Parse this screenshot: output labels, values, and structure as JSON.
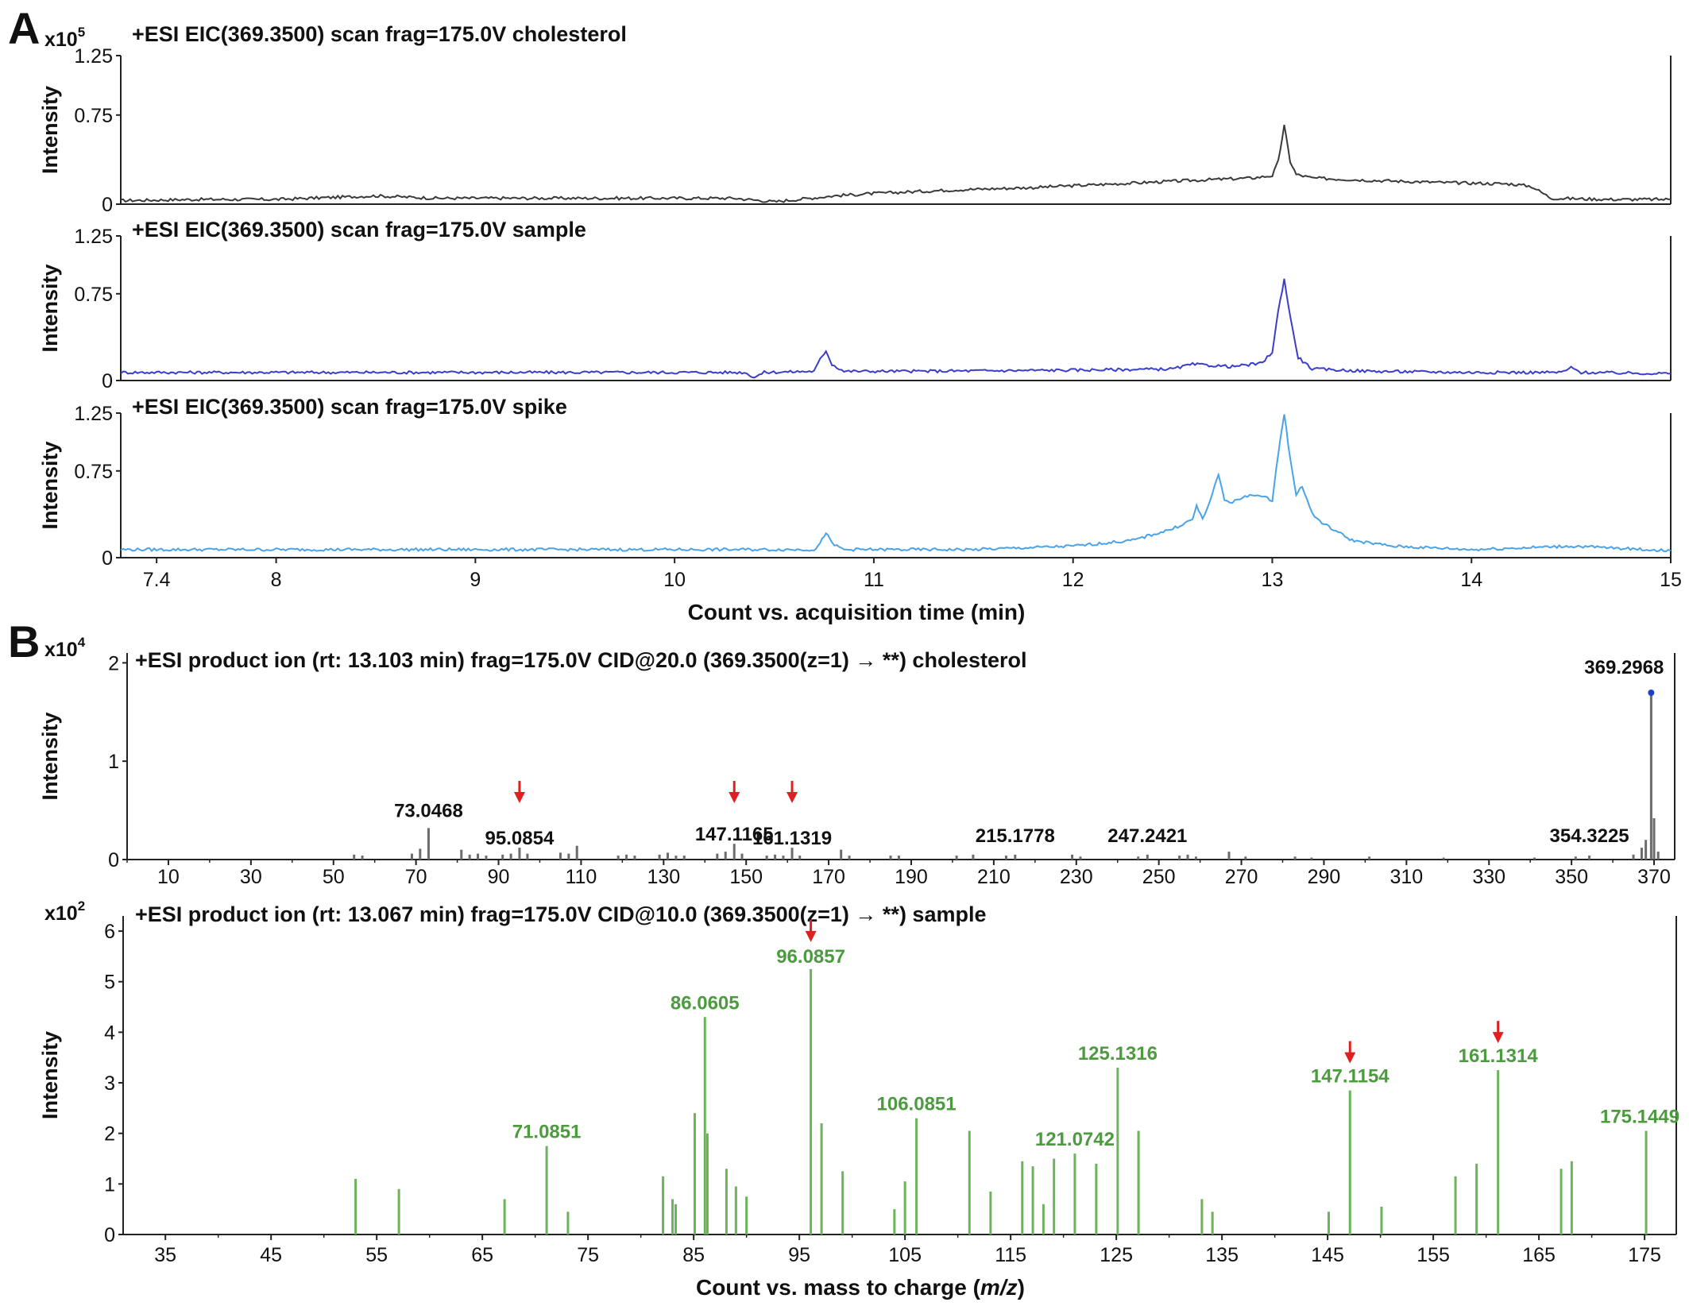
{
  "panel_labels": [
    "A",
    "B"
  ],
  "colors": {
    "cholesterol": "#3a3a3a",
    "sample_eic": "#3b3ec8",
    "spike_eic": "#4aa3e8",
    "ms_chol": "#6b6b6b",
    "ms_sample": "#6cb35c",
    "arrow": "#e02020",
    "marker": "#1f3fd0"
  },
  "chart_data": [
    {
      "type": "line",
      "title": "+ESI EIC(369.3500) scan frag=175.0V cholesterol",
      "multiplier": "x10",
      "multiplier_exp": "5",
      "ylabel": "Intensity",
      "xlabel": "",
      "xlim": [
        7.22,
        15.0
      ],
      "ylim": [
        0,
        1.25
      ],
      "yticks": [
        "0",
        "0.75",
        "1.25"
      ],
      "ytick_values": [
        0,
        0.75,
        1.25
      ],
      "xticks": [],
      "series": [
        {
          "x": [
            7.22,
            7.6,
            8.0,
            8.5,
            8.8,
            9.2,
            9.6,
            10.0,
            10.3,
            10.5,
            10.8,
            11.0,
            11.4,
            11.8,
            12.2,
            12.6,
            12.9,
            13.0,
            13.03,
            13.06,
            13.09,
            13.12,
            13.2,
            13.5,
            13.9,
            14.2,
            14.3,
            14.4,
            14.7,
            15.0
          ],
          "y": [
            0.03,
            0.04,
            0.04,
            0.07,
            0.05,
            0.05,
            0.05,
            0.05,
            0.05,
            0.02,
            0.07,
            0.09,
            0.12,
            0.14,
            0.17,
            0.2,
            0.22,
            0.24,
            0.36,
            0.66,
            0.36,
            0.25,
            0.22,
            0.2,
            0.18,
            0.17,
            0.15,
            0.05,
            0.04,
            0.04
          ]
        }
      ]
    },
    {
      "type": "line",
      "title": "+ESI EIC(369.3500) scan frag=175.0V sample",
      "multiplier": "",
      "multiplier_exp": "",
      "ylabel": "Intensity",
      "xlabel": "",
      "xlim": [
        7.22,
        15.0
      ],
      "ylim": [
        0,
        1.25
      ],
      "yticks": [
        "0",
        "0.75",
        "1.25"
      ],
      "ytick_values": [
        0,
        0.75,
        1.25
      ],
      "xticks": [],
      "series": [
        {
          "x": [
            7.22,
            8.0,
            9.0,
            10.0,
            10.35,
            10.4,
            10.45,
            10.7,
            10.73,
            10.76,
            10.79,
            10.85,
            11.2,
            12.0,
            12.5,
            12.6,
            12.8,
            12.95,
            13.0,
            13.03,
            13.06,
            13.09,
            13.13,
            13.2,
            13.5,
            14.0,
            14.45,
            14.5,
            14.55,
            15.0
          ],
          "y": [
            0.07,
            0.07,
            0.07,
            0.07,
            0.07,
            0.03,
            0.07,
            0.08,
            0.18,
            0.26,
            0.14,
            0.08,
            0.08,
            0.09,
            0.1,
            0.14,
            0.12,
            0.15,
            0.25,
            0.6,
            0.88,
            0.55,
            0.2,
            0.1,
            0.08,
            0.07,
            0.07,
            0.11,
            0.07,
            0.06
          ]
        }
      ]
    },
    {
      "type": "line",
      "title": "+ESI EIC(369.3500) scan frag=175.0V spike",
      "multiplier": "",
      "multiplier_exp": "",
      "ylabel": "Intensity",
      "xlabel": "Count vs. acquisition  time (min)",
      "xlim": [
        7.22,
        15.0
      ],
      "ylim": [
        0,
        1.25
      ],
      "yticks": [
        "0",
        "0.75",
        "1.25"
      ],
      "ytick_values": [
        0,
        0.75,
        1.25
      ],
      "xticks": [
        "7.4",
        "8",
        "9",
        "10",
        "11",
        "12",
        "13",
        "14",
        "15"
      ],
      "xtick_values": [
        7.4,
        8,
        9,
        10,
        11,
        12,
        13,
        14,
        15
      ],
      "series": [
        {
          "x": [
            7.22,
            8.0,
            9.0,
            10.0,
            10.7,
            10.73,
            10.76,
            10.79,
            10.85,
            11.5,
            12.0,
            12.3,
            12.5,
            12.6,
            12.62,
            12.65,
            12.7,
            12.73,
            12.76,
            12.8,
            12.9,
            13.0,
            13.03,
            13.06,
            13.09,
            13.12,
            13.15,
            13.2,
            13.25,
            13.4,
            13.6,
            14.0,
            14.5,
            15.0
          ],
          "y": [
            0.07,
            0.07,
            0.07,
            0.07,
            0.07,
            0.12,
            0.22,
            0.12,
            0.07,
            0.07,
            0.1,
            0.15,
            0.25,
            0.33,
            0.45,
            0.33,
            0.55,
            0.72,
            0.5,
            0.48,
            0.55,
            0.5,
            0.9,
            1.25,
            0.85,
            0.55,
            0.62,
            0.38,
            0.3,
            0.15,
            0.1,
            0.07,
            0.1,
            0.06
          ]
        }
      ]
    },
    {
      "type": "bar",
      "title": "+ESI product ion (rt: 13.103 min) frag=175.0V CID@20.0 (369.3500(z=1) → **) cholesterol",
      "multiplier": "x10",
      "multiplier_exp": "4",
      "ylabel": "Intensity",
      "xlabel": "",
      "xlim": [
        0,
        375
      ],
      "ylim": [
        0,
        2.1
      ],
      "yticks": [
        "0",
        "1",
        "2"
      ],
      "ytick_values": [
        0,
        1,
        2
      ],
      "xticks": [
        "10",
        "30",
        "50",
        "70",
        "90",
        "110",
        "130",
        "150",
        "170",
        "190",
        "210",
        "230",
        "250",
        "270",
        "290",
        "310",
        "330",
        "350",
        "370"
      ],
      "xtick_values": [
        10,
        30,
        50,
        70,
        90,
        110,
        130,
        150,
        170,
        190,
        210,
        230,
        250,
        270,
        290,
        310,
        330,
        350,
        370
      ],
      "x": [
        55,
        57,
        69,
        71,
        73.0468,
        81,
        83,
        85,
        87,
        91,
        93,
        95.0854,
        97,
        105,
        107,
        109,
        119,
        121,
        123,
        129,
        131,
        133,
        135,
        143,
        145,
        147.1165,
        149,
        155,
        157,
        159,
        161.1319,
        163,
        173,
        175,
        185,
        187,
        201,
        205,
        213,
        215.1778,
        229,
        231,
        245,
        247.2421,
        255,
        257,
        259,
        267,
        271,
        283,
        287,
        301,
        319,
        341,
        351,
        354.3225,
        365,
        367,
        368,
        369.2968,
        370,
        371
      ],
      "values": [
        0.05,
        0.04,
        0.06,
        0.11,
        0.32,
        0.1,
        0.05,
        0.06,
        0.04,
        0.05,
        0.06,
        0.12,
        0.06,
        0.07,
        0.06,
        0.14,
        0.04,
        0.05,
        0.04,
        0.05,
        0.07,
        0.04,
        0.04,
        0.06,
        0.08,
        0.16,
        0.06,
        0.04,
        0.05,
        0.04,
        0.12,
        0.04,
        0.1,
        0.04,
        0.04,
        0.04,
        0.04,
        0.05,
        0.04,
        0.05,
        0.05,
        0.03,
        0.03,
        0.05,
        0.04,
        0.05,
        0.03,
        0.08,
        0.03,
        0.03,
        0.02,
        0.03,
        0.02,
        0.02,
        0.03,
        0.04,
        0.05,
        0.12,
        0.2,
        1.68,
        0.42,
        0.08
      ],
      "peak_labels": [
        {
          "text": "73.0468",
          "mz": 73.0468,
          "y": 0.32
        },
        {
          "text": "95.0854",
          "mz": 95.0854,
          "y": 0.12
        },
        {
          "text": "147.1165",
          "mz": 147.1165,
          "y": 0.16
        },
        {
          "text": "161.1319",
          "mz": 161.1319,
          "y": 0.12
        },
        {
          "text": "215.1778",
          "mz": 215.1778,
          "y": 0.05
        },
        {
          "text": "247.2421",
          "mz": 247.2421,
          "y": 0.05
        },
        {
          "text": "354.3225",
          "mz": 354.3225,
          "y": 0.04
        },
        {
          "text": "369.2968",
          "mz": 369.2968,
          "y": 1.68
        }
      ],
      "arrows_at": [
        95.0854,
        147.1165,
        161.1319
      ],
      "marker_at": 369.2968
    },
    {
      "type": "bar",
      "title": "+ESI product ion (rt: 13.067 min) frag=175.0V CID@10.0 (369.3500(z=1) → **) sample",
      "multiplier": "x10",
      "multiplier_exp": "2",
      "ylabel": "Intensity",
      "xlabel": "Count vs. mass to charge (m/z)",
      "xlim": [
        31,
        178
      ],
      "ylim": [
        0,
        6.3
      ],
      "yticks": [
        "0",
        "1",
        "2",
        "3",
        "4",
        "5",
        "6"
      ],
      "ytick_values": [
        0,
        1,
        2,
        3,
        4,
        5,
        6
      ],
      "xticks": [
        "35",
        "45",
        "55",
        "65",
        "75",
        "85",
        "95",
        "105",
        "115",
        "125",
        "135",
        "145",
        "155",
        "165",
        "175"
      ],
      "xtick_values": [
        35,
        45,
        55,
        65,
        75,
        85,
        95,
        105,
        115,
        125,
        135,
        145,
        155,
        165,
        175
      ],
      "x": [
        53,
        57.1,
        67.1,
        71.0851,
        73.1,
        82.1,
        83,
        83.3,
        85.1,
        86.0605,
        86.3,
        88.1,
        89,
        90,
        96.0857,
        97.1,
        99.1,
        104,
        105,
        106.0851,
        111.1,
        113.1,
        116.1,
        117.1,
        118.1,
        119.1,
        121.0742,
        123.1,
        125.1316,
        127.1,
        133.1,
        134.1,
        145.1,
        147.1154,
        150.1,
        157.1,
        159.1,
        161.1314,
        167.1,
        168.1,
        175.1449
      ],
      "values": [
        1.1,
        0.9,
        0.7,
        1.75,
        0.45,
        1.15,
        0.7,
        0.6,
        2.4,
        4.3,
        2.0,
        1.3,
        0.95,
        0.75,
        5.25,
        2.2,
        1.25,
        0.5,
        1.05,
        2.3,
        2.05,
        0.85,
        1.45,
        1.35,
        0.6,
        1.5,
        1.6,
        1.4,
        3.3,
        2.05,
        0.7,
        0.45,
        0.45,
        2.85,
        0.55,
        1.15,
        1.4,
        3.25,
        1.3,
        1.45,
        2.05
      ],
      "peak_labels": [
        {
          "text": "71.0851",
          "mz": 71.0851,
          "y": 1.75
        },
        {
          "text": "86.0605",
          "mz": 86.0605,
          "y": 4.3
        },
        {
          "text": "96.0857",
          "mz": 96.0857,
          "y": 5.25
        },
        {
          "text": "106.0851",
          "mz": 106.0851,
          "y": 2.3
        },
        {
          "text": "121.0742",
          "mz": 121.0742,
          "y": 1.6
        },
        {
          "text": "125.1316",
          "mz": 125.1316,
          "y": 3.3
        },
        {
          "text": "147.1154",
          "mz": 147.1154,
          "y": 2.85
        },
        {
          "text": "161.1314",
          "mz": 161.1314,
          "y": 3.25
        },
        {
          "text": "175.1449",
          "mz": 175.1449,
          "y": 2.05
        }
      ],
      "arrows_at": [
        96.0857,
        147.1154,
        161.1314
      ]
    }
  ]
}
